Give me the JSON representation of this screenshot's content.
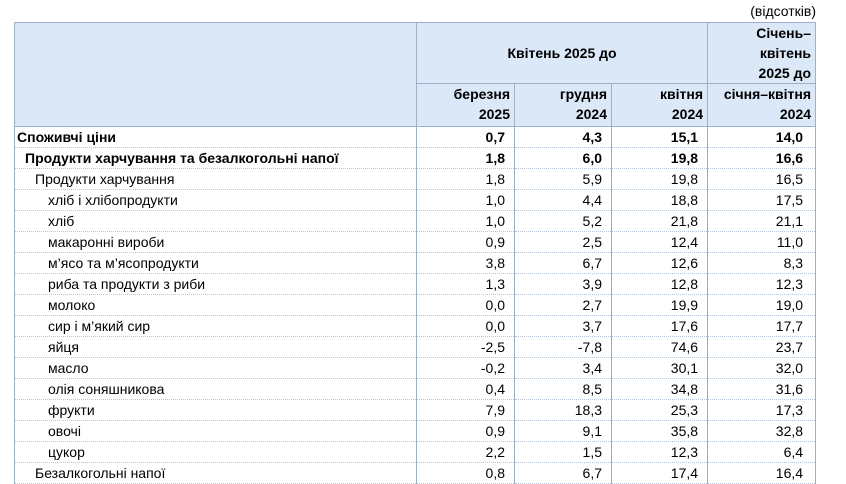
{
  "unit_note": "(відсотків)",
  "header": {
    "group_label": "Квітень 2025 до",
    "col1": [
      "березня",
      "2025"
    ],
    "col2": [
      "грудня",
      "2024"
    ],
    "col3": [
      "квітня",
      "2024"
    ],
    "col4_top": [
      "Січень–квітень",
      "2025 до"
    ],
    "col4_bottom": [
      "січня–квітня",
      "2024"
    ]
  },
  "rows": [
    {
      "name": "Споживчі ціни",
      "level": 0,
      "v": [
        "0,7",
        "4,3",
        "15,1",
        "14,0"
      ]
    },
    {
      "name": "Продукти харчування та безалкогольні напої",
      "level": 1,
      "v": [
        "1,8",
        "6,0",
        "19,8",
        "16,6"
      ]
    },
    {
      "name": "Продукти харчування",
      "level": 2,
      "v": [
        "1,8",
        "5,9",
        "19,8",
        "16,5"
      ]
    },
    {
      "name": "хліб і хлібопродукти",
      "level": 3,
      "v": [
        "1,0",
        "4,4",
        "18,8",
        "17,5"
      ]
    },
    {
      "name": "хліб",
      "level": 3,
      "v": [
        "1,0",
        "5,2",
        "21,8",
        "21,1"
      ]
    },
    {
      "name": "макаронні вироби",
      "level": 3,
      "v": [
        "0,9",
        "2,5",
        "12,4",
        "11,0"
      ]
    },
    {
      "name": "м’ясо та м’ясопродукти",
      "level": 3,
      "v": [
        "3,8",
        "6,7",
        "12,6",
        "8,3"
      ]
    },
    {
      "name": "риба та продукти з риби",
      "level": 3,
      "v": [
        "1,3",
        "3,9",
        "12,8",
        "12,3"
      ]
    },
    {
      "name": "молоко",
      "level": 3,
      "v": [
        "0,0",
        "2,7",
        "19,9",
        "19,0"
      ]
    },
    {
      "name": "сир і м’який сир",
      "level": 3,
      "v": [
        "0,0",
        "3,7",
        "17,6",
        "17,7"
      ]
    },
    {
      "name": "яйця",
      "level": 3,
      "v": [
        "-2,5",
        "-7,8",
        "74,6",
        "23,7"
      ]
    },
    {
      "name": "масло",
      "level": 3,
      "v": [
        "-0,2",
        "3,4",
        "30,1",
        "32,0"
      ]
    },
    {
      "name": "олія соняшникова",
      "level": 3,
      "v": [
        "0,4",
        "8,5",
        "34,8",
        "31,6"
      ]
    },
    {
      "name": "фрукти",
      "level": 3,
      "v": [
        "7,9",
        "18,3",
        "25,3",
        "17,3"
      ]
    },
    {
      "name": "овочі",
      "level": 3,
      "v": [
        "0,9",
        "9,1",
        "35,8",
        "32,8"
      ]
    },
    {
      "name": "цукор",
      "level": 3,
      "v": [
        "2,2",
        "1,5",
        "12,3",
        "6,4"
      ]
    },
    {
      "name": "Безалкогольні напої",
      "level": 2,
      "v": [
        "0,8",
        "6,7",
        "17,4",
        "16,4"
      ]
    }
  ]
}
